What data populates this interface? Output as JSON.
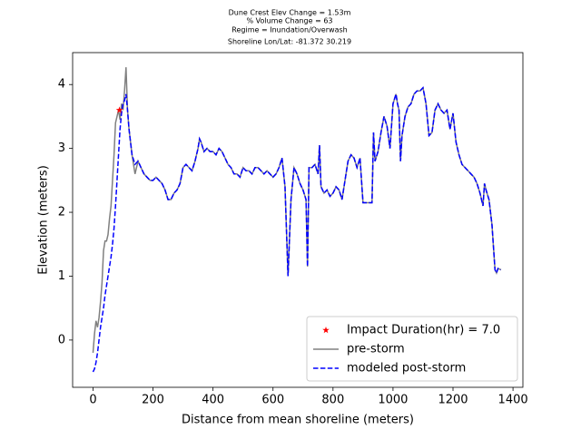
{
  "chart_data": {
    "type": "line",
    "title": [
      "Dune Crest Elev Change = 1.53m",
      "% Volume Change = 63",
      "Regime = Inundation/Overwash",
      "Shoreline Lon/Lat: -81.372 30.219"
    ],
    "xlabel": "Distance from mean shoreline (meters)",
    "ylabel": "Elevation (meters)",
    "xlim": [
      -68,
      1433
    ],
    "ylim": [
      -0.74,
      4.5
    ],
    "xticks": [
      0,
      200,
      400,
      600,
      800,
      1000,
      1200,
      1400
    ],
    "yticks": [
      0,
      1,
      2,
      3,
      4
    ],
    "legend": "lower right",
    "points": [
      {
        "name": "Impact Duration(hr) = 7.0",
        "color": "#ff0000",
        "x": 88,
        "y": 3.6
      }
    ],
    "x": [
      0,
      5,
      10,
      15,
      20,
      25,
      30,
      35,
      40,
      45,
      50,
      55,
      60,
      65,
      70,
      75,
      80,
      85,
      90,
      95,
      100,
      105,
      110,
      115,
      120,
      130,
      140,
      150,
      160,
      170,
      180,
      190,
      200,
      210,
      220,
      230,
      240,
      250,
      260,
      270,
      280,
      290,
      300,
      310,
      320,
      330,
      340,
      350,
      355,
      360,
      370,
      380,
      390,
      400,
      410,
      420,
      430,
      440,
      450,
      460,
      470,
      480,
      490,
      500,
      510,
      520,
      530,
      540,
      550,
      560,
      570,
      580,
      590,
      600,
      610,
      620,
      630,
      640,
      650,
      660,
      670,
      680,
      690,
      700,
      710,
      715,
      720,
      730,
      740,
      750,
      755,
      760,
      770,
      780,
      790,
      800,
      810,
      820,
      830,
      840,
      850,
      860,
      870,
      880,
      890,
      900,
      910,
      920,
      930,
      935,
      940,
      950,
      960,
      970,
      980,
      990,
      1000,
      1010,
      1015,
      1020,
      1025,
      1030,
      1040,
      1050,
      1060,
      1070,
      1080,
      1090,
      1100,
      1110,
      1120,
      1130,
      1140,
      1150,
      1160,
      1170,
      1180,
      1190,
      1200,
      1210,
      1220,
      1230,
      1240,
      1250,
      1260,
      1270,
      1280,
      1290,
      1300,
      1305,
      1310,
      1320,
      1330,
      1340,
      1345,
      1350,
      1360
    ],
    "series": [
      {
        "name": "pre-storm",
        "color": "#808080",
        "dash": false,
        "values": [
          -0.2,
          0.1,
          0.3,
          0.2,
          0.35,
          0.6,
          0.9,
          1.4,
          1.55,
          1.55,
          1.65,
          1.9,
          2.1,
          2.5,
          2.9,
          3.4,
          3.5,
          3.6,
          3.45,
          3.7,
          3.6,
          3.9,
          4.27,
          3.6,
          3.3,
          2.9,
          2.6,
          2.8,
          2.7,
          2.6,
          2.55,
          2.5,
          2.5,
          2.55,
          2.5,
          2.45,
          2.35,
          2.2,
          2.2,
          2.3,
          2.35,
          2.45,
          2.7,
          2.75,
          2.7,
          2.65,
          2.8,
          3.0,
          3.15,
          3.1,
          2.95,
          3.0,
          2.95,
          2.95,
          2.9,
          3.0,
          2.95,
          2.85,
          2.75,
          2.7,
          2.6,
          2.6,
          2.55,
          2.7,
          2.65,
          2.65,
          2.6,
          2.7,
          2.7,
          2.65,
          2.6,
          2.65,
          2.6,
          2.55,
          2.6,
          2.7,
          2.85,
          2.4,
          1.0,
          2.2,
          2.7,
          2.6,
          2.45,
          2.35,
          2.2,
          1.15,
          2.7,
          2.7,
          2.75,
          2.6,
          3.05,
          2.4,
          2.3,
          2.35,
          2.25,
          2.3,
          2.4,
          2.35,
          2.2,
          2.5,
          2.8,
          2.9,
          2.85,
          2.7,
          2.85,
          2.15,
          2.15,
          2.15,
          2.15,
          3.25,
          2.8,
          2.95,
          3.25,
          3.5,
          3.35,
          3.0,
          3.7,
          3.85,
          3.7,
          3.6,
          2.8,
          3.2,
          3.5,
          3.65,
          3.7,
          3.85,
          3.9,
          3.9,
          3.95,
          3.7,
          3.2,
          3.25,
          3.6,
          3.7,
          3.6,
          3.55,
          3.6,
          3.3,
          3.55,
          3.1,
          2.9,
          2.75,
          2.7,
          2.65,
          2.6,
          2.55,
          2.45,
          2.3,
          2.1,
          2.45,
          2.35,
          2.2,
          1.8,
          1.1,
          1.05,
          1.12,
          1.1
        ]
      },
      {
        "name": "modeled post-storm",
        "color": "#0000ff",
        "dash": true,
        "values": [
          -0.5,
          -0.45,
          -0.35,
          -0.2,
          0.0,
          0.2,
          0.35,
          0.5,
          0.7,
          0.85,
          1.0,
          1.15,
          1.3,
          1.5,
          1.75,
          2.1,
          2.5,
          2.9,
          3.3,
          3.55,
          3.7,
          3.75,
          3.85,
          3.6,
          3.3,
          2.9,
          2.75,
          2.8,
          2.7,
          2.6,
          2.55,
          2.5,
          2.5,
          2.55,
          2.5,
          2.45,
          2.35,
          2.2,
          2.2,
          2.3,
          2.35,
          2.45,
          2.7,
          2.75,
          2.7,
          2.65,
          2.8,
          3.0,
          3.15,
          3.1,
          2.95,
          3.0,
          2.95,
          2.95,
          2.9,
          3.0,
          2.95,
          2.85,
          2.75,
          2.7,
          2.6,
          2.6,
          2.55,
          2.7,
          2.65,
          2.65,
          2.6,
          2.7,
          2.7,
          2.65,
          2.6,
          2.65,
          2.6,
          2.55,
          2.6,
          2.7,
          2.85,
          2.4,
          1.0,
          2.2,
          2.7,
          2.6,
          2.45,
          2.35,
          2.2,
          1.15,
          2.7,
          2.7,
          2.75,
          2.6,
          3.05,
          2.4,
          2.3,
          2.35,
          2.25,
          2.3,
          2.4,
          2.35,
          2.2,
          2.5,
          2.8,
          2.9,
          2.85,
          2.7,
          2.85,
          2.15,
          2.15,
          2.15,
          2.15,
          3.25,
          2.8,
          2.95,
          3.25,
          3.5,
          3.35,
          3.0,
          3.7,
          3.85,
          3.7,
          3.6,
          2.8,
          3.2,
          3.5,
          3.65,
          3.7,
          3.85,
          3.9,
          3.9,
          3.95,
          3.7,
          3.2,
          3.25,
          3.6,
          3.7,
          3.6,
          3.55,
          3.6,
          3.3,
          3.55,
          3.1,
          2.9,
          2.75,
          2.7,
          2.65,
          2.6,
          2.55,
          2.45,
          2.3,
          2.1,
          2.45,
          2.35,
          2.2,
          1.8,
          1.1,
          1.05,
          1.12,
          1.1
        ]
      }
    ]
  }
}
